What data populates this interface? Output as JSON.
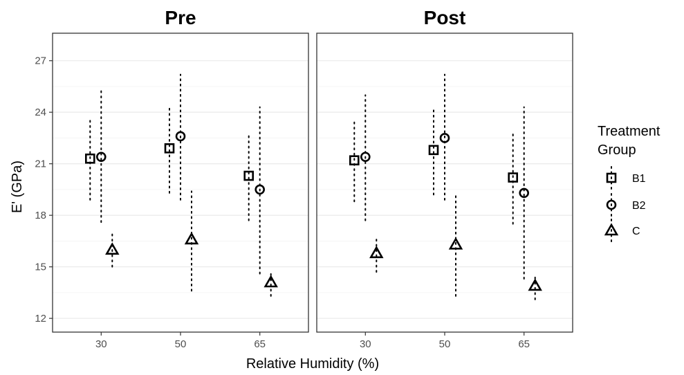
{
  "chart_data": {
    "type": "scatter",
    "panels": [
      {
        "title": "Pre",
        "points": [
          {
            "x": "30",
            "group": "B1",
            "y": 21.3,
            "ymin": 18.9,
            "ymax": 23.6
          },
          {
            "x": "30",
            "group": "B2",
            "y": 21.4,
            "ymin": 17.6,
            "ymax": 25.3
          },
          {
            "x": "30",
            "group": "C",
            "y": 16.0,
            "ymin": 15.0,
            "ymax": 16.9
          },
          {
            "x": "50",
            "group": "B1",
            "y": 21.9,
            "ymin": 19.3,
            "ymax": 24.4
          },
          {
            "x": "50",
            "group": "B2",
            "y": 22.6,
            "ymin": 18.9,
            "ymax": 26.2
          },
          {
            "x": "50",
            "group": "C",
            "y": 16.6,
            "ymin": 13.6,
            "ymax": 19.4
          },
          {
            "x": "65",
            "group": "B1",
            "y": 20.3,
            "ymin": 17.7,
            "ymax": 22.8
          },
          {
            "x": "65",
            "group": "B2",
            "y": 19.5,
            "ymin": 14.6,
            "ymax": 24.3
          },
          {
            "x": "65",
            "group": "C",
            "y": 14.1,
            "ymin": 13.3,
            "ymax": 14.7
          }
        ]
      },
      {
        "title": "Post",
        "points": [
          {
            "x": "30",
            "group": "B1",
            "y": 21.2,
            "ymin": 18.8,
            "ymax": 23.5
          },
          {
            "x": "30",
            "group": "B2",
            "y": 21.4,
            "ymin": 17.7,
            "ymax": 25.0
          },
          {
            "x": "30",
            "group": "C",
            "y": 15.8,
            "ymin": 14.7,
            "ymax": 16.7
          },
          {
            "x": "50",
            "group": "B1",
            "y": 21.8,
            "ymin": 19.2,
            "ymax": 24.3
          },
          {
            "x": "50",
            "group": "B2",
            "y": 22.5,
            "ymin": 18.9,
            "ymax": 26.2
          },
          {
            "x": "50",
            "group": "C",
            "y": 16.3,
            "ymin": 13.3,
            "ymax": 19.2
          },
          {
            "x": "65",
            "group": "B1",
            "y": 20.2,
            "ymin": 17.5,
            "ymax": 22.9
          },
          {
            "x": "65",
            "group": "B2",
            "y": 19.3,
            "ymin": 14.3,
            "ymax": 24.3
          },
          {
            "x": "65",
            "group": "C",
            "y": 13.9,
            "ymin": 13.1,
            "ymax": 14.6
          }
        ]
      }
    ],
    "categories": [
      "30",
      "50",
      "65"
    ],
    "groups": [
      "B1",
      "B2",
      "C"
    ],
    "group_shapes": {
      "B1": "square",
      "B2": "circle",
      "C": "triangle"
    },
    "xlabel": "Relative Humidity (%)",
    "ylabel": "E' (GPa)",
    "ylim": [
      11.2,
      28.6
    ],
    "yticks": [
      12,
      15,
      18,
      21,
      24,
      27
    ],
    "grid": true,
    "legend": {
      "title_lines": [
        "Treatment",
        "Group"
      ],
      "placement": "right"
    },
    "colors": {
      "points": "#000000",
      "grid_major": "#ebebeb",
      "grid_minor": "#f5f5f5",
      "panel_border": "#333333",
      "ticks": "#4d4d4d"
    }
  }
}
